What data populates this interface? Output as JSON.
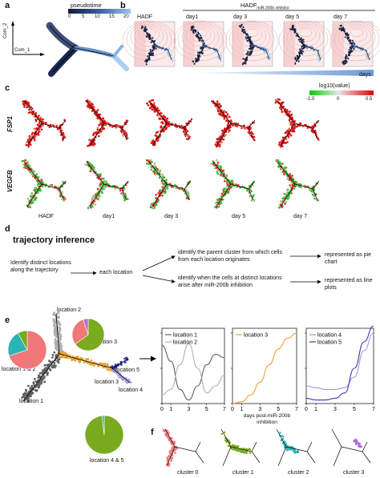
{
  "panels": {
    "a": {
      "label": "a",
      "legend_title": "pseudotime",
      "legend_ticks": [
        "0",
        "5",
        "10",
        "15",
        "20"
      ],
      "axis_y": "Com_2",
      "axis_x": "Com_1"
    },
    "b": {
      "label": "b",
      "group_label": "HADF",
      "group_sub": "miR-200b inhibitor",
      "plots": [
        "HADF",
        "day1",
        "day 3",
        "day 5",
        "day 7"
      ],
      "days_label": "days"
    },
    "c": {
      "label": "c",
      "colorbar_title": "log10(value)",
      "colorbar_ticks": [
        "-1.0",
        "0",
        "0.5"
      ],
      "genes": [
        "FSP1",
        "VEGFB"
      ],
      "columns": [
        "HADF",
        "day1",
        "day 3",
        "day 5",
        "day 7"
      ]
    },
    "d": {
      "label": "d",
      "title": "trajectory inference",
      "box1": "Identify distinct locations along the trajectory",
      "box2": "each location",
      "box3a": "identify the parent cluster from which cells from each location originates",
      "box3b": "identify when the cells at distinct locations arise after miR-200b inhibition",
      "box4a": "represented as pie chart",
      "box4b": "represented as line plots"
    },
    "e": {
      "label": "e",
      "locations": [
        "location 1",
        "location 2",
        "location 3",
        "location 4",
        "location 5"
      ],
      "pie_labels": [
        "location 1 & 2",
        "location 3",
        "location 4 & 5"
      ],
      "xlabel": "days post-miR-200b inhibition"
    },
    "f": {
      "label": "f",
      "clusters": [
        "cluster 0",
        "cluster 1",
        "cluster 2",
        "cluster 3"
      ]
    }
  },
  "colors": {
    "cluster0": "#f07878",
    "cluster1": "#7aaa1e",
    "cluster2": "#2ab4b4",
    "cluster3": "#b070e0",
    "loc1": "#606060",
    "loc2": "#b0b0b0",
    "loc3": "#e8a030",
    "loc4": "#9b9bd8",
    "loc5": "#3838b0"
  },
  "chart_data": [
    {
      "type": "pie",
      "label": "location 1 & 2",
      "slices": [
        {
          "name": "cluster 0",
          "value": 70
        },
        {
          "name": "cluster 2",
          "value": 22
        },
        {
          "name": "cluster 1",
          "value": 8
        }
      ]
    },
    {
      "type": "pie",
      "label": "location 3",
      "slices": [
        {
          "name": "cluster 1",
          "value": 65
        },
        {
          "name": "cluster 0",
          "value": 30
        },
        {
          "name": "cluster 3",
          "value": 5
        }
      ]
    },
    {
      "type": "pie",
      "label": "location 4 & 5",
      "slices": [
        {
          "name": "cluster 1",
          "value": 98
        },
        {
          "name": "cluster 2",
          "value": 2
        }
      ]
    },
    {
      "type": "line",
      "x_ticks": [
        0,
        1,
        3,
        5,
        7
      ],
      "ylim": [
        0,
        40
      ],
      "y_ticks": [
        0,
        20,
        40
      ],
      "series": [
        {
          "name": "location 1",
          "x": [
            0,
            1,
            2,
            3,
            4,
            5,
            6,
            7
          ],
          "y": [
            33,
            24,
            8,
            2,
            10,
            22,
            28,
            26
          ]
        },
        {
          "name": "location 2",
          "x": [
            0,
            1,
            2,
            3,
            4,
            5,
            6,
            7
          ],
          "y": [
            5,
            8,
            22,
            34,
            20,
            6,
            10,
            16
          ]
        }
      ]
    },
    {
      "type": "line",
      "x_ticks": [
        0,
        1,
        3,
        5,
        7
      ],
      "ylim": [
        0,
        40
      ],
      "y_ticks": [
        0,
        20,
        40
      ],
      "xlabel": "days post-miR-200b inhibition",
      "series": [
        {
          "name": "location 3",
          "x": [
            0,
            1,
            2,
            3,
            4,
            5,
            6,
            7
          ],
          "y": [
            0,
            1,
            5,
            12,
            22,
            31,
            37,
            40
          ]
        }
      ]
    },
    {
      "type": "line",
      "x_ticks": [
        0,
        1,
        3,
        5,
        7
      ],
      "ylim": [
        0,
        40
      ],
      "y_ticks": [
        0,
        20,
        40
      ],
      "series": [
        {
          "name": "location 4",
          "x": [
            0,
            1,
            2,
            3,
            4,
            5,
            6,
            7
          ],
          "y": [
            10,
            9,
            8,
            8,
            9,
            15,
            30,
            40
          ]
        },
        {
          "name": "location 5",
          "x": [
            0,
            1,
            2,
            3,
            4,
            5,
            6,
            7
          ],
          "y": [
            3,
            2,
            2,
            3,
            6,
            20,
            35,
            44
          ]
        }
      ]
    }
  ]
}
